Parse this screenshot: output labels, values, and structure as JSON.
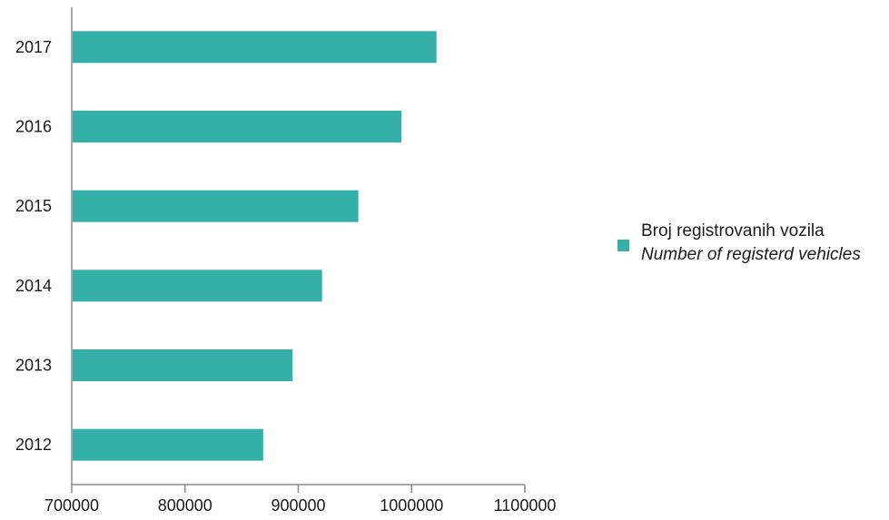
{
  "chart_data": {
    "type": "bar",
    "orientation": "horizontal",
    "categories": [
      "2017",
      "2016",
      "2015",
      "2014",
      "2013",
      "2012"
    ],
    "series": [
      {
        "name": "Broj registrovanih vozila",
        "name_secondary": "Number of registerd vehicles",
        "values": [
          1022000,
          991000,
          953000,
          921000,
          895000,
          869000
        ]
      }
    ],
    "x_ticks": [
      "700000",
      "800000",
      "900000",
      "1000000",
      "1100000"
    ],
    "xlim": [
      700000,
      1100000
    ],
    "grid": false,
    "legend_position": "right",
    "bar_color": "#35b0a8",
    "axis_color": "#8c8c8c"
  }
}
